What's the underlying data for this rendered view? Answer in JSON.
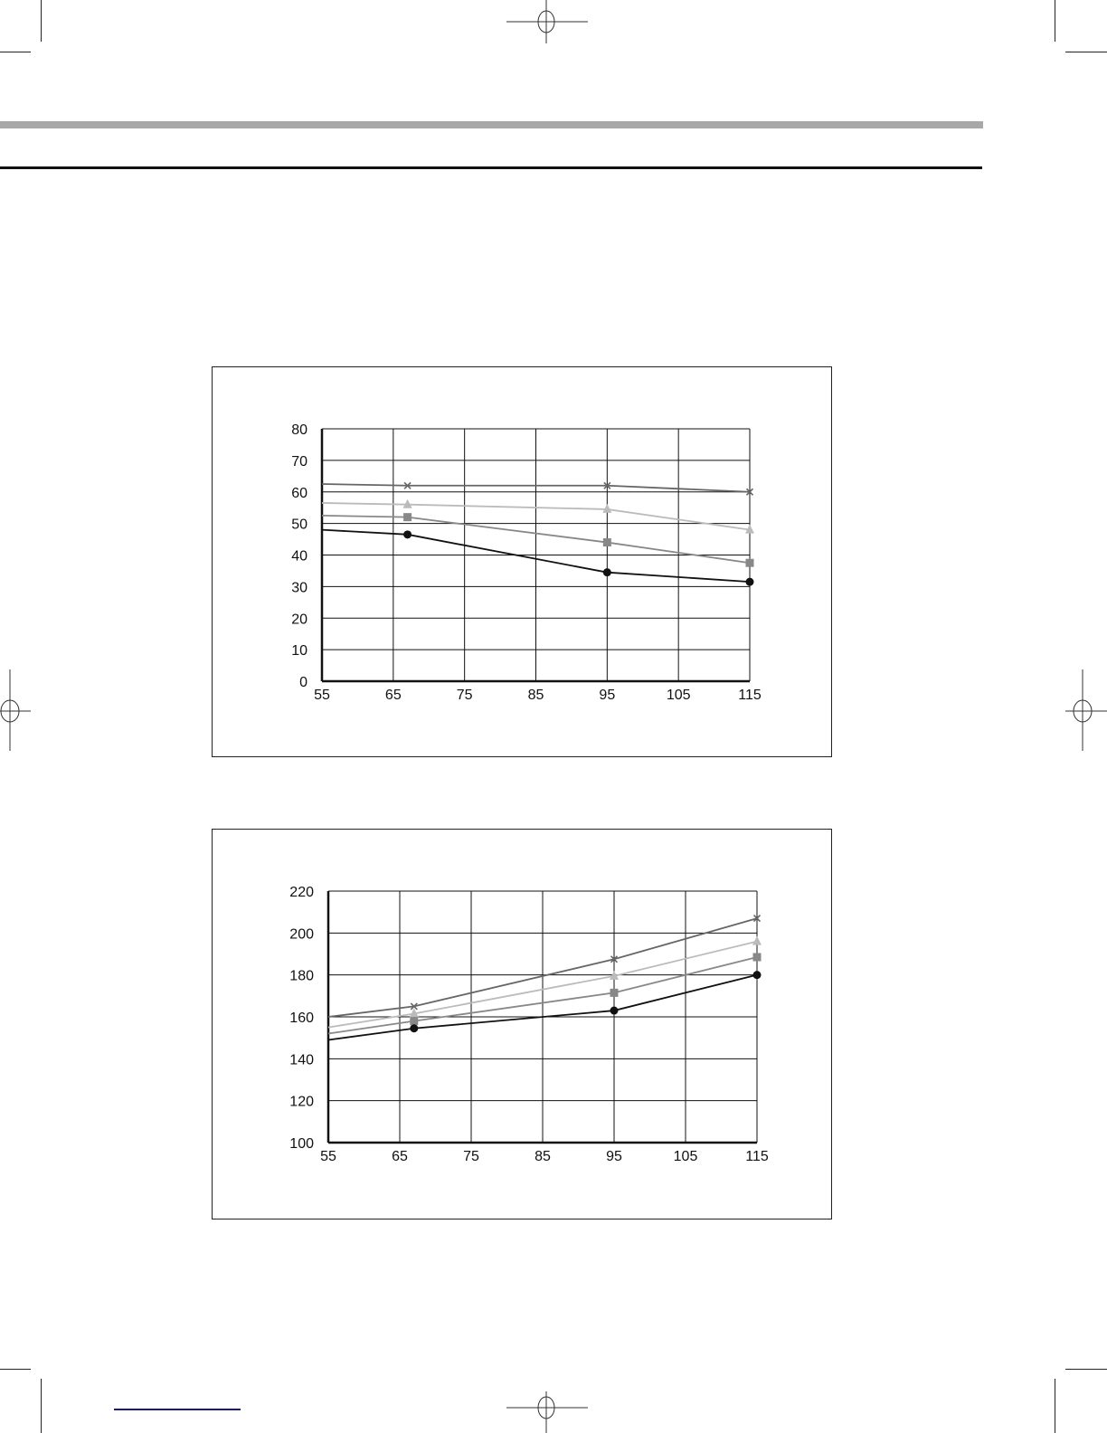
{
  "page": {
    "header_bar_color": "#a8a8a8",
    "rule_color": "#111111",
    "footer_link_color": "#1a1a7a"
  },
  "chart_data": [
    {
      "type": "line",
      "title": "",
      "xlabel": "",
      "ylabel": "",
      "x_ticks": [
        55,
        65,
        75,
        85,
        95,
        105,
        115
      ],
      "y_ticks": [
        0,
        10,
        20,
        30,
        40,
        50,
        60,
        70,
        80
      ],
      "xlim": [
        55,
        115
      ],
      "ylim": [
        0,
        80
      ],
      "grid": true,
      "x": [
        55,
        67,
        95,
        115
      ],
      "series": [
        {
          "marker": "x",
          "color": "#666666",
          "values": [
            62.5,
            62,
            62,
            60
          ]
        },
        {
          "marker": "triangle",
          "color": "#bbbbbb",
          "values": [
            56.5,
            56,
            54.5,
            48
          ]
        },
        {
          "marker": "square",
          "color": "#888888",
          "values": [
            52.5,
            52,
            44,
            37.5
          ]
        },
        {
          "marker": "circle",
          "color": "#111111",
          "values": [
            48,
            46.5,
            34.5,
            31.5
          ]
        }
      ]
    },
    {
      "type": "line",
      "title": "",
      "xlabel": "",
      "ylabel": "",
      "x_ticks": [
        55,
        65,
        75,
        85,
        95,
        105,
        115
      ],
      "y_ticks": [
        100,
        120,
        140,
        160,
        180,
        200,
        220
      ],
      "xlim": [
        55,
        115
      ],
      "ylim": [
        100,
        220
      ],
      "grid": true,
      "x": [
        55,
        67,
        95,
        115
      ],
      "series": [
        {
          "marker": "x",
          "color": "#666666",
          "values": [
            160,
            165,
            187.5,
            207
          ]
        },
        {
          "marker": "triangle",
          "color": "#bbbbbb",
          "values": [
            155,
            161.5,
            179.5,
            196
          ]
        },
        {
          "marker": "square",
          "color": "#888888",
          "values": [
            152,
            158,
            171.5,
            188.5
          ]
        },
        {
          "marker": "circle",
          "color": "#111111",
          "values": [
            149,
            154.5,
            163,
            180
          ]
        }
      ]
    }
  ]
}
